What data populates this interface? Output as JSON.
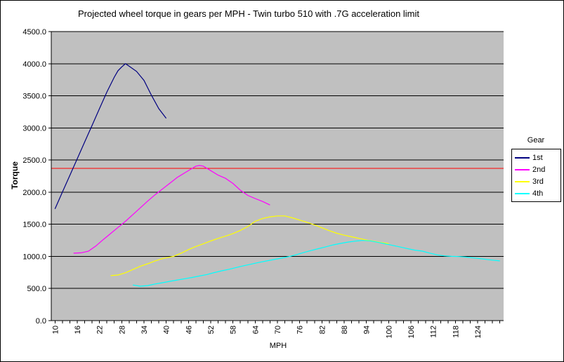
{
  "chart_data": {
    "type": "line",
    "title": "Projected wheel torque in gears per MPH - Twin turbo 510 with .7G acceleration limit",
    "xlabel": "MPH",
    "ylabel": "Torque",
    "legend_title": "Gear",
    "legend_position": "right",
    "plot_bg": "#C0C0C0",
    "grid": true,
    "grid_color": "#000000",
    "axis_color": "#000000",
    "xlim": [
      9,
      131
    ],
    "ylim": [
      0,
      4500
    ],
    "x_minor_tick_range": [
      10,
      130
    ],
    "x_minor_tick_step": 2,
    "x_tick_values": [
      10,
      16,
      22,
      28,
      34,
      40,
      46,
      52,
      58,
      64,
      70,
      76,
      82,
      88,
      94,
      100,
      106,
      112,
      118,
      124
    ],
    "x_tick_labels": [
      "10",
      "16",
      "22",
      "28",
      "34",
      "40",
      "46",
      "52",
      "58",
      "64",
      "70",
      "76",
      "82",
      "88",
      "94",
      "100",
      "106",
      "112",
      "118",
      "124"
    ],
    "y_tick_values": [
      0,
      500,
      1000,
      1500,
      2000,
      2500,
      3000,
      3500,
      4000,
      4500
    ],
    "y_tick_labels": [
      "0.0",
      "500.0",
      "1000.0",
      "1500.0",
      "2000.0",
      "2500.0",
      "3000.0",
      "3500.0",
      "4000.0",
      "4500.0"
    ],
    "limit_line": {
      "value": 2370,
      "color": "#FF0000"
    },
    "series": [
      {
        "name": "1st",
        "color": "#000080",
        "points": [
          [
            10,
            1740
          ],
          [
            12,
            2000
          ],
          [
            14,
            2260
          ],
          [
            16,
            2520
          ],
          [
            18,
            2780
          ],
          [
            20,
            3040
          ],
          [
            22,
            3300
          ],
          [
            24,
            3560
          ],
          [
            26,
            3790
          ],
          [
            27,
            3890
          ],
          [
            28,
            3950
          ],
          [
            29,
            4000
          ],
          [
            30,
            3960
          ],
          [
            32,
            3880
          ],
          [
            34,
            3740
          ],
          [
            36,
            3510
          ],
          [
            38,
            3300
          ],
          [
            40,
            3150
          ]
        ]
      },
      {
        "name": "2nd",
        "color": "#FF00FF",
        "points": [
          [
            15,
            1050
          ],
          [
            17,
            1055
          ],
          [
            19,
            1080
          ],
          [
            21,
            1160
          ],
          [
            23,
            1260
          ],
          [
            25,
            1355
          ],
          [
            27,
            1450
          ],
          [
            29,
            1545
          ],
          [
            31,
            1650
          ],
          [
            33,
            1755
          ],
          [
            35,
            1860
          ],
          [
            37,
            1960
          ],
          [
            39,
            2050
          ],
          [
            41,
            2140
          ],
          [
            43,
            2230
          ],
          [
            45,
            2300
          ],
          [
            47,
            2370
          ],
          [
            48,
            2405
          ],
          [
            49,
            2415
          ],
          [
            50,
            2405
          ],
          [
            52,
            2335
          ],
          [
            54,
            2265
          ],
          [
            56,
            2215
          ],
          [
            58,
            2135
          ],
          [
            60,
            2030
          ],
          [
            62,
            1950
          ],
          [
            64,
            1900
          ],
          [
            66,
            1855
          ],
          [
            68,
            1800
          ]
        ]
      },
      {
        "name": "3rd",
        "color": "#FFFF00",
        "points": [
          [
            25,
            700
          ],
          [
            27,
            710
          ],
          [
            29,
            745
          ],
          [
            31,
            795
          ],
          [
            33,
            845
          ],
          [
            35,
            885
          ],
          [
            37,
            930
          ],
          [
            39,
            965
          ],
          [
            41,
            990
          ],
          [
            42,
            1000
          ],
          [
            44,
            1050
          ],
          [
            46,
            1105
          ],
          [
            48,
            1155
          ],
          [
            50,
            1195
          ],
          [
            52,
            1240
          ],
          [
            54,
            1280
          ],
          [
            56,
            1315
          ],
          [
            58,
            1355
          ],
          [
            60,
            1405
          ],
          [
            62,
            1465
          ],
          [
            64,
            1545
          ],
          [
            66,
            1590
          ],
          [
            68,
            1615
          ],
          [
            70,
            1630
          ],
          [
            72,
            1630
          ],
          [
            74,
            1600
          ],
          [
            76,
            1565
          ],
          [
            78,
            1530
          ],
          [
            80,
            1490
          ],
          [
            82,
            1445
          ],
          [
            84,
            1400
          ],
          [
            86,
            1360
          ],
          [
            88,
            1330
          ],
          [
            90,
            1305
          ],
          [
            92,
            1280
          ],
          [
            94,
            1255
          ],
          [
            96,
            1235
          ],
          [
            98,
            1215
          ],
          [
            100,
            1200
          ]
        ]
      },
      {
        "name": "4th",
        "color": "#00FFFF",
        "points": [
          [
            31,
            555
          ],
          [
            33,
            535
          ],
          [
            35,
            545
          ],
          [
            37,
            570
          ],
          [
            39,
            590
          ],
          [
            41,
            612
          ],
          [
            43,
            632
          ],
          [
            45,
            652
          ],
          [
            47,
            672
          ],
          [
            49,
            695
          ],
          [
            51,
            718
          ],
          [
            53,
            748
          ],
          [
            55,
            775
          ],
          [
            57,
            800
          ],
          [
            59,
            828
          ],
          [
            61,
            855
          ],
          [
            63,
            880
          ],
          [
            65,
            905
          ],
          [
            67,
            928
          ],
          [
            69,
            950
          ],
          [
            71,
            972
          ],
          [
            73,
            995
          ],
          [
            75,
            1025
          ],
          [
            77,
            1058
          ],
          [
            79,
            1090
          ],
          [
            81,
            1120
          ],
          [
            83,
            1148
          ],
          [
            85,
            1178
          ],
          [
            87,
            1202
          ],
          [
            89,
            1222
          ],
          [
            91,
            1238
          ],
          [
            93,
            1248
          ],
          [
            95,
            1242
          ],
          [
            97,
            1220
          ],
          [
            99,
            1196
          ],
          [
            101,
            1172
          ],
          [
            103,
            1148
          ],
          [
            105,
            1122
          ],
          [
            107,
            1098
          ],
          [
            109,
            1082
          ],
          [
            111,
            1052
          ],
          [
            113,
            1025
          ],
          [
            115,
            1008
          ],
          [
            117,
            1000
          ],
          [
            119,
            997
          ],
          [
            121,
            988
          ],
          [
            123,
            975
          ],
          [
            125,
            962
          ],
          [
            127,
            948
          ],
          [
            130,
            930
          ]
        ]
      }
    ]
  }
}
